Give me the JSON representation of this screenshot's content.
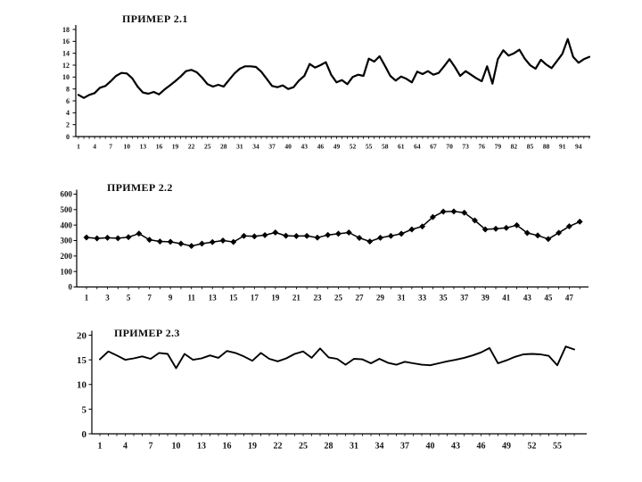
{
  "page": {
    "background": "#ffffff",
    "text_color": "#141414",
    "line_color": "#000000"
  },
  "chart_data": [
    {
      "type": "line",
      "title": "ПРИМЕР 2.1",
      "marker": "none",
      "line_color": "#000000",
      "ylim": [
        0,
        18
      ],
      "yticks": [
        0,
        2,
        4,
        6,
        8,
        10,
        12,
        14,
        16,
        18
      ],
      "xticks": [
        1,
        4,
        7,
        10,
        13,
        16,
        19,
        22,
        25,
        28,
        31,
        34,
        37,
        40,
        43,
        46,
        49,
        52,
        55,
        58,
        61,
        64,
        67,
        70,
        73,
        76,
        79,
        82,
        85,
        88,
        91,
        94
      ],
      "grid": false,
      "legend": "none",
      "values": [
        7.0,
        6.5,
        7.0,
        7.3,
        8.2,
        8.5,
        9.3,
        10.2,
        10.7,
        10.6,
        9.8,
        8.4,
        7.4,
        7.2,
        7.5,
        7.1,
        7.9,
        8.6,
        9.3,
        10.1,
        11.0,
        11.2,
        10.8,
        9.9,
        8.8,
        8.4,
        8.7,
        8.4,
        9.5,
        10.6,
        11.4,
        11.8,
        11.8,
        11.7,
        10.9,
        9.7,
        8.5,
        8.3,
        8.6,
        8.0,
        8.3,
        9.4,
        10.2,
        12.2,
        11.6,
        12.0,
        12.5,
        10.4,
        9.1,
        9.5,
        8.8,
        10.0,
        10.4,
        10.2,
        13.1,
        12.6,
        13.5,
        11.9,
        10.2,
        9.4,
        10.1,
        9.7,
        9.1,
        10.9,
        10.5,
        11.0,
        10.4,
        10.7,
        11.8,
        13.0,
        11.7,
        10.2,
        11.0,
        10.4,
        9.8,
        9.3,
        11.8,
        8.9,
        13.0,
        14.5,
        13.6,
        14.0,
        14.6,
        13.1,
        12.0,
        11.4,
        12.9,
        12.1,
        11.5,
        12.7,
        13.9,
        16.4,
        13.4,
        12.4,
        13.0,
        13.4
      ]
    },
    {
      "type": "line",
      "title": "ПРИМЕР 2.2",
      "marker": "diamond",
      "line_color": "#000000",
      "ylim": [
        0,
        600
      ],
      "yticks": [
        0,
        100,
        200,
        300,
        400,
        500,
        600
      ],
      "xticks": [
        1,
        3,
        5,
        7,
        9,
        11,
        13,
        15,
        17,
        19,
        21,
        23,
        25,
        27,
        29,
        31,
        33,
        35,
        37,
        39,
        41,
        43,
        45,
        47
      ],
      "grid": false,
      "legend": "none",
      "values": [
        320,
        314,
        318,
        315,
        322,
        345,
        305,
        294,
        292,
        280,
        265,
        280,
        290,
        300,
        291,
        330,
        327,
        335,
        352,
        331,
        329,
        330,
        319,
        336,
        344,
        352,
        317,
        294,
        318,
        330,
        344,
        372,
        391,
        452,
        487,
        488,
        480,
        430,
        372,
        376,
        382,
        399,
        349,
        333,
        310,
        350,
        392,
        422
      ]
    },
    {
      "type": "line",
      "title": "ПРИМЕР 2.3",
      "marker": "none",
      "line_color": "#000000",
      "ylim": [
        0,
        20
      ],
      "yticks": [
        0,
        5,
        10,
        15,
        20
      ],
      "xticks": [
        1,
        4,
        7,
        10,
        13,
        16,
        19,
        22,
        25,
        28,
        31,
        34,
        37,
        40,
        43,
        46,
        49,
        52,
        55
      ],
      "grid": false,
      "legend": "none",
      "values": [
        15.1,
        16.7,
        15.9,
        15.0,
        15.3,
        15.7,
        15.2,
        16.4,
        16.2,
        13.3,
        16.2,
        15.0,
        15.3,
        15.9,
        15.4,
        16.8,
        16.4,
        15.7,
        14.8,
        16.4,
        15.2,
        14.7,
        15.3,
        16.2,
        16.7,
        15.4,
        17.3,
        15.5,
        15.2,
        14.0,
        15.2,
        15.1,
        14.3,
        15.2,
        14.4,
        14.0,
        14.6,
        14.3,
        14.0,
        13.9,
        14.3,
        14.7,
        15.0,
        15.4,
        15.9,
        16.5,
        17.4,
        14.3,
        14.9,
        15.6,
        16.1,
        16.2,
        16.1,
        15.8,
        13.9,
        17.7,
        17.1
      ]
    }
  ]
}
